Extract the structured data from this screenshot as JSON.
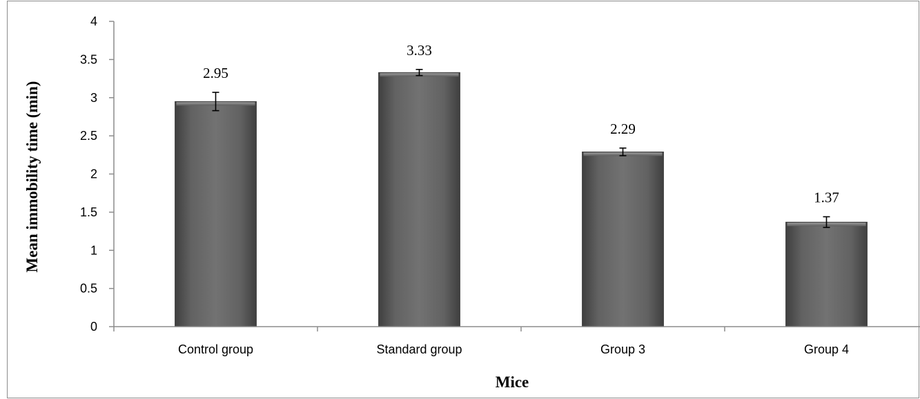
{
  "chart_data": {
    "type": "bar",
    "title": "",
    "xlabel": "Mice",
    "ylabel": "Mean immobility time (min)",
    "categories": [
      "Control group",
      "Standard group",
      "Group 3",
      "Group 4"
    ],
    "values": [
      2.95,
      3.33,
      2.29,
      1.37
    ],
    "value_labels": [
      "2.95",
      "3.33",
      "2.29",
      "1.37"
    ],
    "error": [
      0.12,
      0.04,
      0.05,
      0.07
    ],
    "ylim": [
      0,
      4
    ],
    "yticks": [
      0,
      0.5,
      1,
      1.5,
      2,
      2.5,
      3,
      3.5,
      4
    ],
    "ytick_labels": [
      "0",
      "0.5",
      "1",
      "1.5",
      "2",
      "2.5",
      "3",
      "3.5",
      "4"
    ],
    "grid": false,
    "legend": "none",
    "colors": {
      "bar_dark": "#4a4a4a",
      "bar_mid": "#6e6e6e",
      "bar_light": "#8a8a8a",
      "axis": "#8c8c8c"
    }
  }
}
